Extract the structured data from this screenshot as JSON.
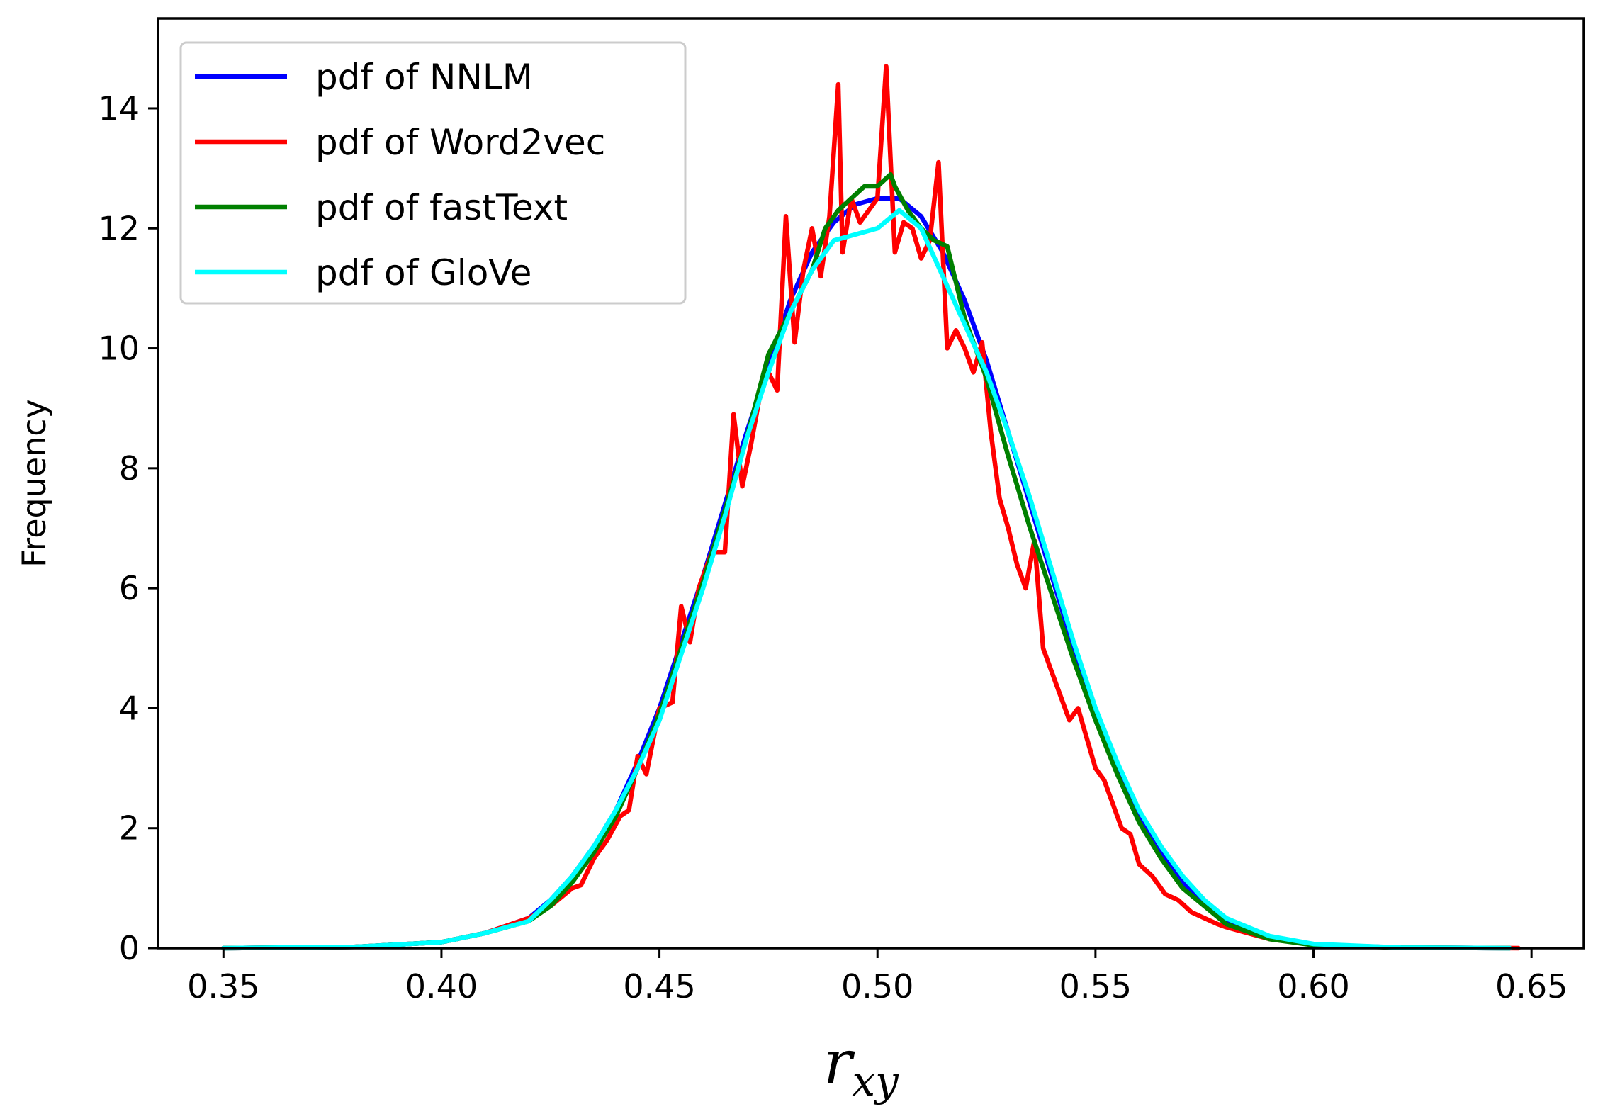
{
  "chart_data": {
    "type": "line",
    "title": "",
    "xlabel": "r",
    "xlabel_subscript": "xy",
    "ylabel": "Frequency",
    "xlim": [
      0.335,
      0.662
    ],
    "ylim": [
      0,
      15.5
    ],
    "xticks": [
      0.35,
      0.4,
      0.45,
      0.5,
      0.55,
      0.6,
      0.65
    ],
    "xtick_labels": [
      "0.35",
      "0.40",
      "0.45",
      "0.50",
      "0.55",
      "0.60",
      "0.65"
    ],
    "yticks": [
      0,
      2,
      4,
      6,
      8,
      10,
      12,
      14
    ],
    "ytick_labels": [
      "0",
      "2",
      "4",
      "6",
      "8",
      "10",
      "12",
      "14"
    ],
    "grid": false,
    "legend_position": "top-left",
    "series": [
      {
        "name": "pdf of NNLM",
        "label": "pdf of NNLM",
        "color": "#0000ff",
        "x": [
          0.35,
          0.38,
          0.4,
          0.41,
          0.42,
          0.425,
          0.43,
          0.435,
          0.44,
          0.445,
          0.45,
          0.455,
          0.46,
          0.465,
          0.47,
          0.475,
          0.48,
          0.485,
          0.49,
          0.495,
          0.5,
          0.505,
          0.51,
          0.515,
          0.52,
          0.525,
          0.53,
          0.535,
          0.54,
          0.545,
          0.55,
          0.555,
          0.56,
          0.565,
          0.57,
          0.575,
          0.58,
          0.59,
          0.6,
          0.62,
          0.645
        ],
        "y": [
          0.0,
          0.02,
          0.1,
          0.25,
          0.5,
          0.8,
          1.2,
          1.7,
          2.3,
          3.1,
          4.0,
          5.1,
          6.2,
          7.4,
          8.6,
          9.7,
          10.8,
          11.6,
          12.1,
          12.4,
          12.5,
          12.5,
          12.2,
          11.6,
          10.8,
          9.8,
          8.6,
          7.4,
          6.2,
          5.0,
          3.9,
          3.0,
          2.2,
          1.6,
          1.1,
          0.7,
          0.45,
          0.18,
          0.06,
          0.01,
          0.0
        ]
      },
      {
        "name": "pdf of Word2vec",
        "label": "pdf of Word2vec",
        "color": "#ff0000",
        "x": [
          0.35,
          0.38,
          0.4,
          0.41,
          0.42,
          0.425,
          0.43,
          0.432,
          0.435,
          0.438,
          0.441,
          0.443,
          0.445,
          0.447,
          0.45,
          0.453,
          0.455,
          0.457,
          0.459,
          0.462,
          0.465,
          0.467,
          0.469,
          0.471,
          0.473,
          0.475,
          0.477,
          0.479,
          0.481,
          0.483,
          0.485,
          0.487,
          0.489,
          0.491,
          0.492,
          0.494,
          0.496,
          0.498,
          0.5,
          0.502,
          0.504,
          0.506,
          0.508,
          0.51,
          0.512,
          0.514,
          0.516,
          0.518,
          0.52,
          0.522,
          0.524,
          0.526,
          0.528,
          0.53,
          0.532,
          0.534,
          0.536,
          0.538,
          0.54,
          0.542,
          0.544,
          0.546,
          0.548,
          0.55,
          0.552,
          0.554,
          0.556,
          0.558,
          0.56,
          0.563,
          0.566,
          0.569,
          0.572,
          0.575,
          0.578,
          0.58,
          0.59,
          0.6,
          0.62,
          0.647
        ],
        "y": [
          0.0,
          0.02,
          0.1,
          0.25,
          0.5,
          0.7,
          1.0,
          1.05,
          1.5,
          1.8,
          2.2,
          2.3,
          3.2,
          2.9,
          4.0,
          4.1,
          5.7,
          5.1,
          6.0,
          6.6,
          6.6,
          8.9,
          7.7,
          8.4,
          9.2,
          9.6,
          9.3,
          12.2,
          10.1,
          11.3,
          12.0,
          11.2,
          12.2,
          14.4,
          11.6,
          12.5,
          12.1,
          12.3,
          12.5,
          14.7,
          11.6,
          12.1,
          12.0,
          11.5,
          11.8,
          13.1,
          10.0,
          10.3,
          10.0,
          9.6,
          10.1,
          8.6,
          7.5,
          7.0,
          6.4,
          6.0,
          6.8,
          5.0,
          4.6,
          4.2,
          3.8,
          4.0,
          3.5,
          3.0,
          2.8,
          2.4,
          2.0,
          1.9,
          1.4,
          1.2,
          0.9,
          0.8,
          0.6,
          0.5,
          0.4,
          0.35,
          0.15,
          0.06,
          0.01,
          0.0
        ]
      },
      {
        "name": "pdf of fastText",
        "label": "pdf of fastText",
        "color": "#008000",
        "x": [
          0.35,
          0.38,
          0.4,
          0.41,
          0.42,
          0.425,
          0.43,
          0.435,
          0.44,
          0.445,
          0.45,
          0.455,
          0.46,
          0.465,
          0.47,
          0.475,
          0.48,
          0.485,
          0.488,
          0.491,
          0.494,
          0.497,
          0.5,
          0.503,
          0.504,
          0.507,
          0.51,
          0.513,
          0.516,
          0.52,
          0.525,
          0.53,
          0.535,
          0.54,
          0.545,
          0.55,
          0.555,
          0.56,
          0.565,
          0.57,
          0.575,
          0.58,
          0.59,
          0.6,
          0.62,
          0.645
        ],
        "y": [
          0.0,
          0.02,
          0.1,
          0.25,
          0.45,
          0.7,
          1.1,
          1.6,
          2.2,
          3.0,
          3.9,
          5.0,
          6.1,
          7.3,
          8.5,
          9.9,
          10.6,
          11.3,
          12.0,
          12.3,
          12.5,
          12.7,
          12.7,
          12.9,
          12.7,
          12.3,
          12.0,
          11.8,
          11.7,
          10.5,
          9.5,
          8.2,
          7.0,
          5.9,
          4.8,
          3.8,
          2.9,
          2.1,
          1.5,
          1.0,
          0.7,
          0.4,
          0.15,
          0.05,
          0.01,
          0.0
        ]
      },
      {
        "name": "pdf of GloVe",
        "label": "pdf of GloVe",
        "color": "#00ffff",
        "x": [
          0.35,
          0.38,
          0.4,
          0.41,
          0.42,
          0.425,
          0.43,
          0.435,
          0.44,
          0.445,
          0.45,
          0.455,
          0.46,
          0.465,
          0.47,
          0.475,
          0.48,
          0.485,
          0.49,
          0.495,
          0.5,
          0.505,
          0.51,
          0.515,
          0.52,
          0.525,
          0.53,
          0.535,
          0.54,
          0.545,
          0.55,
          0.555,
          0.56,
          0.565,
          0.57,
          0.575,
          0.58,
          0.59,
          0.6,
          0.62,
          0.645
        ],
        "y": [
          0.0,
          0.02,
          0.1,
          0.25,
          0.45,
          0.8,
          1.2,
          1.7,
          2.3,
          3.0,
          3.8,
          4.9,
          6.0,
          7.2,
          8.5,
          9.6,
          10.6,
          11.3,
          11.8,
          11.9,
          12.0,
          12.3,
          12.0,
          11.2,
          10.4,
          9.6,
          8.6,
          7.5,
          6.3,
          5.1,
          4.0,
          3.1,
          2.3,
          1.7,
          1.2,
          0.8,
          0.5,
          0.2,
          0.07,
          0.01,
          0.0
        ]
      }
    ]
  }
}
